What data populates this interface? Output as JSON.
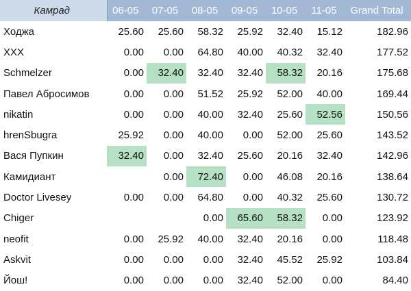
{
  "table": {
    "corner": "Камрад",
    "columns": [
      "06-05",
      "07-05",
      "08-05",
      "09-05",
      "10-05",
      "11-05",
      "Grand Total"
    ],
    "highlight_color": "#b6e1c4",
    "header_color": "#a3b8d5",
    "rows": [
      {
        "name": "Ходжа",
        "cells": [
          "25.60",
          "25.60",
          "58.32",
          "25.92",
          "32.40",
          "15.12"
        ],
        "total": "182.96",
        "highlight": []
      },
      {
        "name": "XXX",
        "cells": [
          "0.00",
          "0.00",
          "64.80",
          "40.00",
          "40.32",
          "32.40"
        ],
        "total": "177.52",
        "highlight": []
      },
      {
        "name": "Schmelzer",
        "cells": [
          "0.00",
          "32.40",
          "32.40",
          "32.40",
          "58.32",
          "20.16"
        ],
        "total": "175.68",
        "highlight": [
          1,
          4
        ]
      },
      {
        "name": "Павел Абросимов",
        "cells": [
          "0.00",
          "0.00",
          "51.52",
          "25.92",
          "52.00",
          "40.00"
        ],
        "total": "169.44",
        "highlight": []
      },
      {
        "name": "nikatin",
        "cells": [
          "0.00",
          "0.00",
          "40.00",
          "32.40",
          "25.60",
          "52.56"
        ],
        "total": "150.56",
        "highlight": [
          5
        ]
      },
      {
        "name": "hrenSbugra",
        "cells": [
          "25.92",
          "0.00",
          "40.00",
          "0.00",
          "52.00",
          "25.60"
        ],
        "total": "143.52",
        "highlight": []
      },
      {
        "name": "Вася Пупкин",
        "cells": [
          "32.40",
          "0.00",
          "32.40",
          "25.60",
          "20.16",
          "32.40"
        ],
        "total": "142.96",
        "highlight": [
          0
        ]
      },
      {
        "name": "Камидиант",
        "cells": [
          "",
          "0.00",
          "72.40",
          "0.00",
          "46.08",
          "20.16"
        ],
        "total": "138.64",
        "highlight": [
          2
        ]
      },
      {
        "name": "Doctor Livesey",
        "cells": [
          "0.00",
          "0.00",
          "64.80",
          "0.00",
          "40.32",
          "25.60"
        ],
        "total": "130.72",
        "highlight": []
      },
      {
        "name": "Chiger",
        "cells": [
          "",
          "",
          "0.00",
          "65.60",
          "58.32",
          "0.00"
        ],
        "total": "123.92",
        "highlight": [
          3,
          4
        ]
      },
      {
        "name": "neofit",
        "cells": [
          "0.00",
          "25.92",
          "40.00",
          "32.40",
          "20.16",
          "0.00"
        ],
        "total": "118.48",
        "highlight": []
      },
      {
        "name": "Askvit",
        "cells": [
          "0.00",
          "0.00",
          "0.00",
          "32.40",
          "45.52",
          "25.92"
        ],
        "total": "103.84",
        "highlight": []
      },
      {
        "name": "Йош!",
        "cells": [
          "0.00",
          "0.00",
          "0.00",
          "32.40",
          "52.00",
          "0.00"
        ],
        "total": "84.40",
        "highlight": []
      }
    ]
  }
}
